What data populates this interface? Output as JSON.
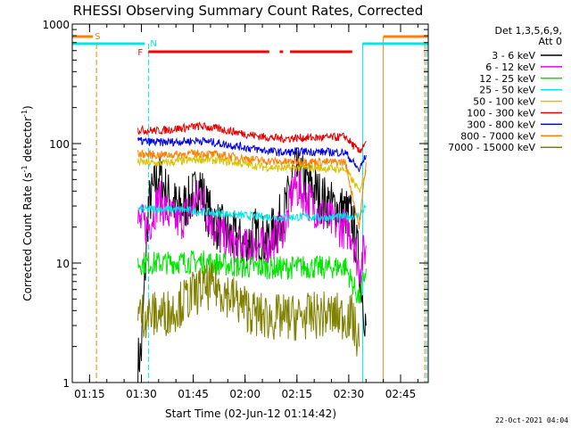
{
  "chart_data": {
    "type": "line",
    "title": "RHESSI Observing Summary Count Rates, Corrected",
    "xlabel": "Start Time (02-Jun-12 01:14:42)",
    "ylabel": "Corrected Count Rate (s⁻¹ detector⁻¹)",
    "ylabel_main": "Corrected Count Rate (s",
    "ylabel_sup1": "-1",
    "ylabel_mid": " detector",
    "ylabel_sup2": "-1",
    "ylabel_end": ")",
    "y_scale": "log",
    "ylim": [
      1,
      1000
    ],
    "xlim": [
      "01:10",
      "02:53"
    ],
    "x_ticks": [
      "01:15",
      "01:30",
      "01:45",
      "02:00",
      "02:15",
      "02:30",
      "02:45"
    ],
    "y_ticks": [
      "1",
      "10",
      "100",
      "1000"
    ],
    "legend_header": [
      "Det 1,3,5,6,9,",
      "Att 0"
    ],
    "legend_position": "right",
    "footer_date": "22-Oct-2021 04:04",
    "flags": [
      {
        "name": "S",
        "color": "#ff8000"
      },
      {
        "name": "N",
        "color": "#00e5e5"
      },
      {
        "name": "F",
        "color": "#ff0000"
      }
    ],
    "series": [
      {
        "name": "3 - 6 keV",
        "color": "#000000",
        "x": [
          "01:29",
          "01:30",
          "01:32",
          "01:35",
          "01:38",
          "01:41",
          "01:44",
          "01:47",
          "01:49",
          "01:51",
          "01:54",
          "01:57",
          "02:00",
          "02:03",
          "02:06",
          "02:09",
          "02:12",
          "02:14",
          "02:16",
          "02:19",
          "02:22",
          "02:25",
          "02:28",
          "02:31",
          "02:33",
          "02:35"
        ],
        "values": [
          1.5,
          1.8,
          30,
          55,
          35,
          28,
          33,
          45,
          28,
          22,
          18,
          16,
          14,
          18,
          15,
          20,
          30,
          60,
          52,
          45,
          35,
          30,
          28,
          24,
          10,
          3
        ]
      },
      {
        "name": "6 - 12 keV",
        "color": "#e600e6",
        "x": [
          "01:29",
          "01:32",
          "01:35",
          "01:38",
          "01:41",
          "01:44",
          "01:47",
          "01:49",
          "01:51",
          "01:54",
          "01:57",
          "02:00",
          "02:03",
          "02:06",
          "02:09",
          "02:12",
          "02:14",
          "02:16",
          "02:19",
          "02:22",
          "02:25",
          "02:28",
          "02:31",
          "02:33",
          "02:35"
        ],
        "values": [
          22,
          20,
          35,
          25,
          22,
          28,
          38,
          27,
          20,
          16,
          14,
          13,
          15,
          13,
          17,
          22,
          45,
          40,
          32,
          26,
          22,
          20,
          18,
          9,
          14
        ]
      },
      {
        "name": "12 - 25 keV",
        "color": "#00e600",
        "x": [
          "01:29",
          "01:35",
          "01:41",
          "01:47",
          "01:53",
          "01:59",
          "02:05",
          "02:11",
          "02:17",
          "02:23",
          "02:29",
          "02:33",
          "02:35"
        ],
        "values": [
          10,
          10,
          10.2,
          10.3,
          9.8,
          9.3,
          9.2,
          9.1,
          9.3,
          9.1,
          9.4,
          5,
          9
        ]
      },
      {
        "name": "25 - 50 keV",
        "color": "#00e5e5",
        "x": [
          "01:29",
          "01:35",
          "01:41",
          "01:47",
          "01:53",
          "01:59",
          "02:05",
          "02:11",
          "02:17",
          "02:23",
          "02:29",
          "02:33",
          "02:35"
        ],
        "values": [
          28,
          28.5,
          28,
          27,
          26,
          25,
          24.5,
          24,
          24.5,
          24,
          24.5,
          25,
          30
        ]
      },
      {
        "name": "50 - 100 keV",
        "color": "#d9c200",
        "x": [
          "01:29",
          "01:35",
          "01:41",
          "01:47",
          "01:53",
          "01:59",
          "02:05",
          "02:11",
          "02:17",
          "02:23",
          "02:29",
          "02:33",
          "02:35"
        ],
        "values": [
          70,
          68,
          71,
          74,
          72,
          68,
          64,
          62,
          63,
          62,
          61,
          40,
          60
        ]
      },
      {
        "name": "100 - 300 keV",
        "color": "#e60000",
        "x": [
          "01:29",
          "01:35",
          "01:41",
          "01:47",
          "01:53",
          "01:59",
          "02:05",
          "02:11",
          "02:17",
          "02:23",
          "02:29",
          "02:33",
          "02:35"
        ],
        "values": [
          130,
          128,
          134,
          140,
          132,
          122,
          114,
          110,
          112,
          112,
          114,
          85,
          105
        ]
      },
      {
        "name": "300 - 800 keV",
        "color": "#0000e6",
        "x": [
          "01:29",
          "01:35",
          "01:41",
          "01:47",
          "01:53",
          "01:59",
          "02:05",
          "02:11",
          "02:17",
          "02:23",
          "02:29",
          "02:33",
          "02:35"
        ],
        "values": [
          105,
          102,
          104,
          106,
          100,
          94,
          88,
          84,
          86,
          85,
          84,
          60,
          80
        ]
      },
      {
        "name": "800 - 7000 keV",
        "color": "#ff8000",
        "x": [
          "01:29",
          "01:35",
          "01:41",
          "01:47",
          "01:53",
          "01:59",
          "02:05",
          "02:11",
          "02:17",
          "02:23",
          "02:29",
          "02:33",
          "02:35"
        ],
        "values": [
          82,
          80,
          81,
          83,
          80,
          76,
          72,
          70,
          71,
          70,
          70,
          20,
          70
        ]
      },
      {
        "name": "7000 - 15000 keV",
        "color": "#808000",
        "x": [
          "01:29",
          "01:35",
          "01:39",
          "01:43",
          "01:47",
          "01:51",
          "01:55",
          "01:59",
          "02:03",
          "02:07",
          "02:11",
          "02:15",
          "02:19",
          "02:23",
          "02:27",
          "02:31",
          "02:33"
        ],
        "values": [
          3.7,
          3.7,
          4,
          5,
          6,
          6.5,
          5.5,
          4.5,
          3.7,
          3.5,
          3.5,
          3.5,
          3.6,
          3.7,
          3.6,
          3.5,
          2
        ]
      }
    ]
  }
}
